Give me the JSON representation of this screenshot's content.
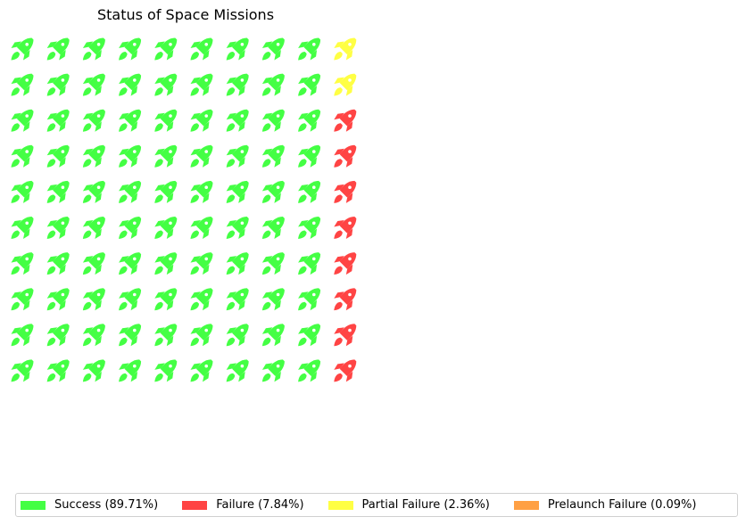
{
  "chart_data": {
    "type": "waffle",
    "title": "Status of Space Missions",
    "icon": "rocket-icon",
    "rows": 10,
    "columns": 10,
    "categories": [
      {
        "name": "Success",
        "percent": 89.71,
        "label": "Success (89.71%)",
        "icons": 90,
        "color": "#44FF44"
      },
      {
        "name": "Failure",
        "percent": 7.84,
        "label": "Failure (7.84%)",
        "icons": 8,
        "color": "#FF4444"
      },
      {
        "name": "Partial Failure",
        "percent": 2.36,
        "label": "Partial Failure (2.36%)",
        "icons": 2,
        "color": "#FFFF44"
      },
      {
        "name": "Prelaunch Failure",
        "percent": 0.09,
        "label": "Prelaunch Failure (0.09%)",
        "icons": 0,
        "color": "#FFA044"
      }
    ],
    "legend_position": "bottom"
  }
}
